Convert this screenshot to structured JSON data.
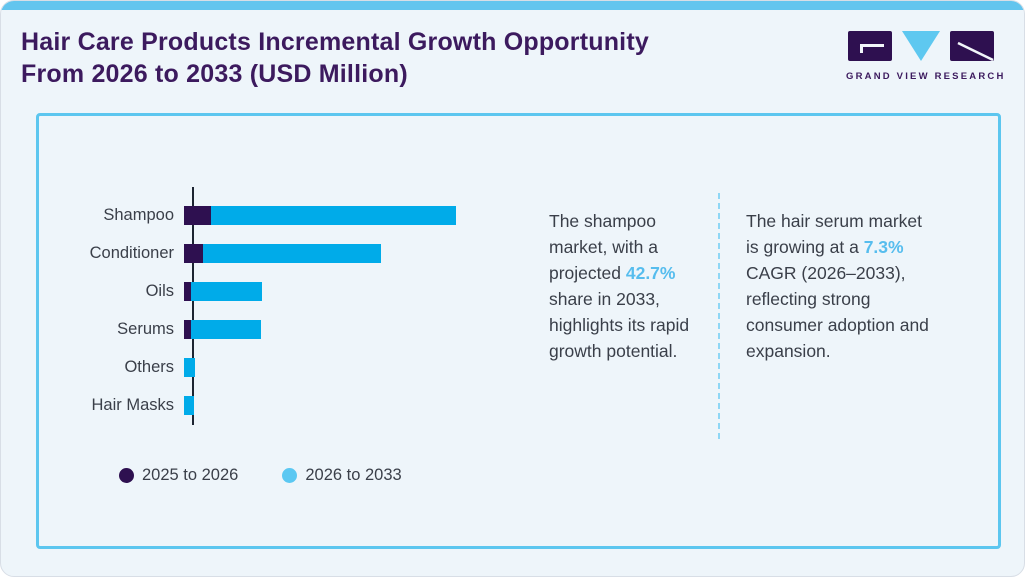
{
  "header": {
    "title": "Hair Care Products Incremental Growth Opportunity\nFrom 2026 to 2033 (USD Million)",
    "logo_text": "GRAND VIEW RESEARCH"
  },
  "chart_data": {
    "type": "bar",
    "orientation": "horizontal",
    "stacked": true,
    "title": "Hair Care Products Incremental Growth Opportunity From 2026 to 2033 (USD Million)",
    "categories": [
      "Shampoo",
      "Conditioner",
      "Oils",
      "Serums",
      "Others",
      "Hair Masks"
    ],
    "series": [
      {
        "name": "2025 to 2026",
        "color": "#2e1050",
        "values": [
          27,
          19,
          7,
          7,
          0,
          0
        ]
      },
      {
        "name": "2026 to 2033",
        "color": "#00abe9",
        "values": [
          245,
          178,
          71,
          70,
          11,
          10
        ]
      }
    ],
    "legend_colors": [
      "#2e1050",
      "#5bc8f2"
    ],
    "value_axis": "hidden (no tick labels shown; values are relative units estimated from bar lengths)",
    "xlim": [
      0,
      260
    ],
    "grid": false,
    "legend_position": "bottom-left"
  },
  "insights": [
    {
      "pre": "The shampoo market, with a projected ",
      "highlight": "42.7%",
      "post": " share in 2033, highlights its rapid growth potential."
    },
    {
      "pre": "The hair serum market is growing at a ",
      "highlight": "7.3%",
      "post": " CAGR (2026–2033), reflecting strong consumer adoption and expansion."
    }
  ],
  "colors": {
    "accent_bar_blue": "#00abe9",
    "dark_purple": "#2e1050",
    "title_purple": "#3c1a5e",
    "panel_border_blue": "#5cc6ef",
    "top_strip_blue": "#63c5ee",
    "highlight_blue": "#56bdee",
    "background": "#eef5fa",
    "body_text": "#3a3f49"
  }
}
